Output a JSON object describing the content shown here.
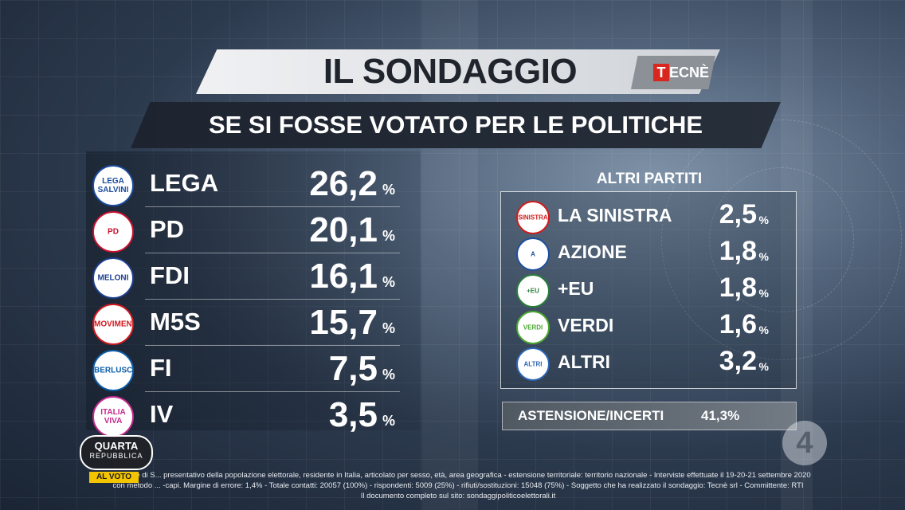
{
  "header": {
    "title": "IL SONDAGGIO",
    "logo_text": "TECNÈ",
    "subtitle": "SE SI FOSSE VOTATO PER LE POLITICHE"
  },
  "main_parties": [
    {
      "name": "LEGA",
      "value": "26,2",
      "pct": "%",
      "logo": "LEGA SALVINI",
      "logo_color": "#1a4c9e"
    },
    {
      "name": "PD",
      "value": "20,1",
      "pct": "%",
      "logo": "PD",
      "logo_color": "#c8102e"
    },
    {
      "name": "FDI",
      "value": "16,1",
      "pct": "%",
      "logo": "MELONI",
      "logo_color": "#1c3f8f"
    },
    {
      "name": "M5S",
      "value": "15,7",
      "pct": "%",
      "logo": "MOVIMENTO",
      "logo_color": "#d2191f"
    },
    {
      "name": "FI",
      "value": "7,5",
      "pct": "%",
      "logo": "BERLUSCONI",
      "logo_color": "#0b5da8"
    },
    {
      "name": "IV",
      "value": "3,5",
      "pct": "%",
      "logo": "ITALIA VIVA",
      "logo_color": "#c62a8e"
    }
  ],
  "other_parties": {
    "heading": "ALTRI PARTITI",
    "items": [
      {
        "name": "LA SINISTRA",
        "value": "2,5",
        "pct": "%",
        "logo": "SINISTRA",
        "logo_color": "#d01c1c"
      },
      {
        "name": "AZIONE",
        "value": "1,8",
        "pct": "%",
        "logo": "A",
        "logo_color": "#1e4f9c"
      },
      {
        "name": "+EU",
        "value": "1,8",
        "pct": "%",
        "logo": "+EU",
        "logo_color": "#2a7e3b"
      },
      {
        "name": "VERDI",
        "value": "1,6",
        "pct": "%",
        "logo": "VERDI",
        "logo_color": "#4aa830"
      },
      {
        "name": "ALTRI",
        "value": "3,2",
        "pct": "%",
        "logo": "ALTRI",
        "logo_color": "#2d66b3"
      }
    ]
  },
  "abstention": {
    "label": "ASTENSIONE/INCERTI",
    "value": "41,3%"
  },
  "channel_logo": "4",
  "show": {
    "line1": "QUARTA",
    "line2": "REPUBBLICA",
    "tag": "AL VOTO"
  },
  "footer": {
    "line1": "Campione di S... presentativo della popolazione elettorale, residente in Italia, articolato per sesso, età, area geografica - estensione territoriale: territorio nazionale - Interviste effettuate il 19-20-21 settembre 2020",
    "line2": "con metodo ... -capi. Margine di errore: 1,4% - Totale contatti: 20057 (100%) - rispondenti: 5009 (25%) - rifiuti/sostituzioni: 15048 (75%) - Soggetto che ha realizzato il sondaggio: Tecnè srl - Committente: RTI",
    "line3": "Il documento completo sul sito: sondaggipoliticoelettorali.it"
  }
}
